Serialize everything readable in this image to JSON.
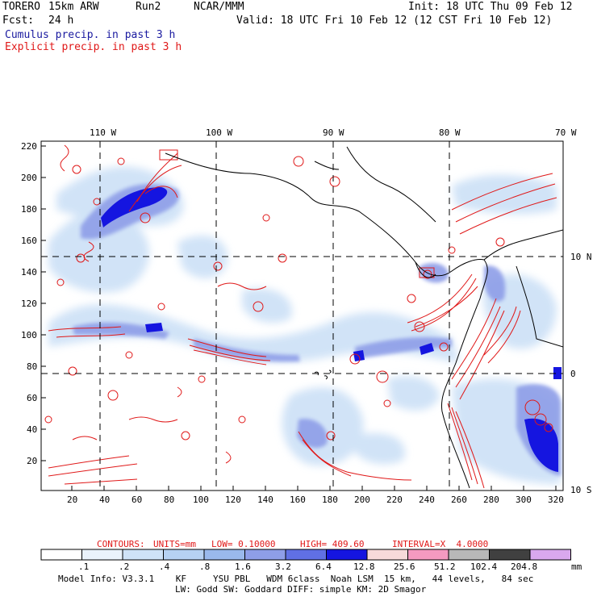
{
  "header": {
    "model": "TORERO",
    "resolution": "15km ARW",
    "run": "Run2",
    "org": "NCAR/MMM",
    "init": "Init: 18 UTC Thu 09 Feb 12",
    "fcst_label": "Fcst:",
    "fcst_value": "24 h",
    "valid": "Valid: 18 UTC Fri 10 Feb 12 (12 CST Fri 10 Feb 12)",
    "field1": "Cumulus precip. in past 3 h",
    "field2": "Explicit precip. in past 3 h"
  },
  "axes": {
    "lon_labels": [
      "110 W",
      "100 W",
      "90 W",
      "80 W",
      "70 W"
    ],
    "lat_labels": [
      "10 N",
      "0",
      "10 S"
    ],
    "x_ticks": [
      "20",
      "40",
      "60",
      "80",
      "100",
      "120",
      "140",
      "160",
      "180",
      "200",
      "220",
      "240",
      "260",
      "280",
      "300",
      "320"
    ],
    "y_ticks": [
      "220",
      "200",
      "180",
      "160",
      "140",
      "120",
      "100",
      "80",
      "60",
      "40",
      "20"
    ]
  },
  "contours": {
    "label": "CONTOURS:",
    "units": "UNITS=mm",
    "low": "LOW= 0.10000",
    "high": "HIGH= 409.60",
    "interval": "INTERVAL=X  4.0000"
  },
  "legend": {
    "labels": [
      ".1",
      ".2",
      ".4",
      ".8",
      "1.6",
      "3.2",
      "6.4",
      "12.8",
      "25.6",
      "51.2",
      "102.4",
      "204.8"
    ],
    "unit": "mm",
    "colors": [
      "#ffffff",
      "#eaf2fb",
      "#cfe2f7",
      "#b6d1f2",
      "#9ab9ec",
      "#8e9ee8",
      "#6070e4",
      "#1515e0",
      "#f7d9d9",
      "#f49ac0",
      "#b8b8b8",
      "#404040",
      "#d9a8ee"
    ]
  },
  "footer": {
    "line1": "Model Info: V3.3.1    KF     YSU PBL   WDM 6class  Noah LSM  15 km,   44 levels,   84 sec",
    "line2": "LW: Godd SW: Goddard DIFF: simple KM: 2D Smagor"
  }
}
